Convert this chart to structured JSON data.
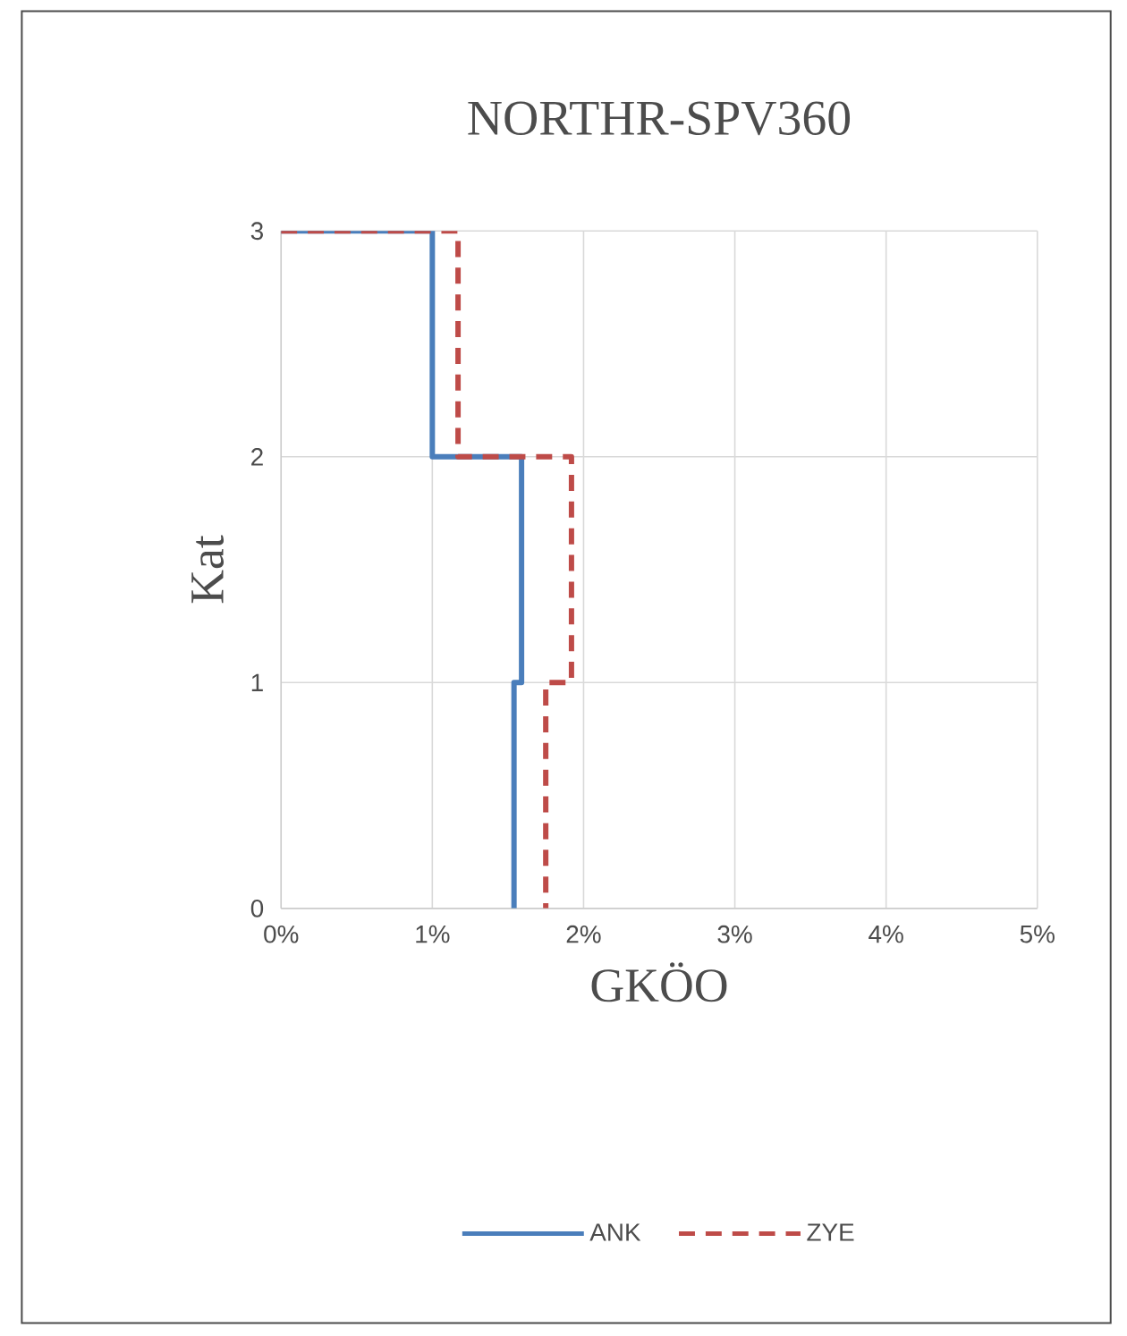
{
  "chart_data": {
    "type": "line",
    "title": "NORTHR-SPV360",
    "xlabel": "GKÖO",
    "ylabel": "Kat",
    "series": [
      {
        "name": "ANK",
        "color": "#4a7ebb",
        "line_style": "solid",
        "x": [
          0,
          1.0,
          1.0,
          1.59,
          1.59,
          1.54,
          1.54
        ],
        "values": [
          3,
          3,
          2,
          2,
          1,
          1,
          0
        ]
      },
      {
        "name": "ZYE",
        "color": "#be4b48",
        "line_style": "dashed",
        "x": [
          0,
          1.17,
          1.17,
          1.92,
          1.92,
          1.75,
          1.75
        ],
        "values": [
          3,
          3,
          2,
          2,
          1,
          1,
          0
        ]
      }
    ],
    "xlim": [
      0,
      5
    ],
    "ylim": [
      0,
      3
    ],
    "xticks": [
      {
        "value": 0,
        "label": "0%"
      },
      {
        "value": 1,
        "label": "1%"
      },
      {
        "value": 2,
        "label": "2%"
      },
      {
        "value": 3,
        "label": "3%"
      },
      {
        "value": 4,
        "label": "4%"
      },
      {
        "value": 5,
        "label": "5%"
      }
    ],
    "yticks": [
      0,
      1,
      2,
      3
    ],
    "grid": true,
    "legend": "bottom",
    "marker": "none"
  }
}
